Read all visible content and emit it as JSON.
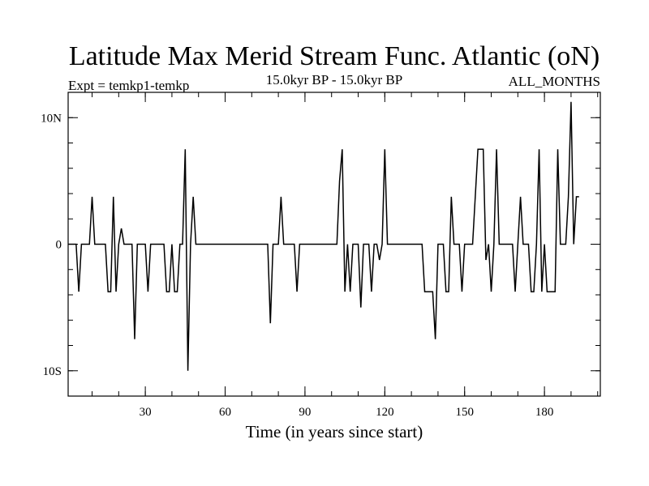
{
  "chart_data": {
    "type": "line",
    "title": "Latitude Max Merid Stream Func. Atlantic (oN)",
    "subtitle_left": "Expt = temkp1-temkp",
    "subtitle_center": "15.0kyr BP - 15.0kyr BP",
    "subtitle_right": "ALL_MONTHS",
    "xlabel": "Time (in years since start)",
    "ylabel": "",
    "xlim": [
      1,
      201
    ],
    "ylim": [
      -12,
      12
    ],
    "x_ticks": [
      {
        "value": 30,
        "label": "30"
      },
      {
        "value": 60,
        "label": "60"
      },
      {
        "value": 90,
        "label": "90"
      },
      {
        "value": 120,
        "label": "120"
      },
      {
        "value": 150,
        "label": "150"
      },
      {
        "value": 180,
        "label": "180"
      }
    ],
    "x_minor_step": 10,
    "y_ticks": [
      {
        "value": 10,
        "label": "10N"
      },
      {
        "value": 0,
        "label": "0"
      },
      {
        "value": -10,
        "label": "10S"
      }
    ],
    "y_minor_step": 2,
    "grid": false,
    "series": [
      {
        "name": "Latitude Max Merid Stream Func. Atlantic",
        "points": [
          [
            1,
            0
          ],
          [
            4,
            0
          ],
          [
            5,
            -3.75
          ],
          [
            6,
            0
          ],
          [
            9,
            0
          ],
          [
            10,
            3.75
          ],
          [
            11,
            0
          ],
          [
            15,
            0
          ],
          [
            16,
            -3.75
          ],
          [
            17,
            -3.75
          ],
          [
            18,
            3.75
          ],
          [
            19,
            -3.75
          ],
          [
            20,
            0
          ],
          [
            21,
            1.25
          ],
          [
            22,
            0
          ],
          [
            25,
            0
          ],
          [
            26,
            -7.5
          ],
          [
            27,
            0
          ],
          [
            30,
            0
          ],
          [
            31,
            -3.75
          ],
          [
            32,
            0
          ],
          [
            37,
            0
          ],
          [
            38,
            -3.75
          ],
          [
            39,
            -3.75
          ],
          [
            40,
            0
          ],
          [
            41,
            -3.75
          ],
          [
            42,
            -3.75
          ],
          [
            43,
            0
          ],
          [
            44,
            0
          ],
          [
            45,
            7.5
          ],
          [
            46,
            -10
          ],
          [
            47,
            0
          ],
          [
            48,
            3.75
          ],
          [
            49,
            0
          ],
          [
            76,
            0
          ],
          [
            77,
            -6.25
          ],
          [
            78,
            0
          ],
          [
            80,
            0
          ],
          [
            81,
            3.75
          ],
          [
            82,
            0
          ],
          [
            86,
            0
          ],
          [
            87,
            -3.75
          ],
          [
            88,
            0
          ],
          [
            102,
            0
          ],
          [
            103,
            5
          ],
          [
            104,
            7.5
          ],
          [
            105,
            -3.75
          ],
          [
            106,
            0
          ],
          [
            107,
            -3.75
          ],
          [
            108,
            0
          ],
          [
            110,
            0
          ],
          [
            111,
            -5
          ],
          [
            112,
            0
          ],
          [
            114,
            0
          ],
          [
            115,
            -3.75
          ],
          [
            116,
            0
          ],
          [
            117,
            0
          ],
          [
            118,
            -1.25
          ],
          [
            119,
            0
          ],
          [
            120,
            7.5
          ],
          [
            121,
            0
          ],
          [
            134,
            0
          ],
          [
            135,
            -3.75
          ],
          [
            137,
            -3.75
          ],
          [
            138,
            -3.75
          ],
          [
            139,
            -7.5
          ],
          [
            140,
            0
          ],
          [
            142,
            0
          ],
          [
            143,
            -3.75
          ],
          [
            144,
            -3.75
          ],
          [
            145,
            3.75
          ],
          [
            146,
            0
          ],
          [
            148,
            0
          ],
          [
            149,
            -3.75
          ],
          [
            150,
            0
          ],
          [
            153,
            0
          ],
          [
            155,
            7.5
          ],
          [
            157,
            7.5
          ],
          [
            158,
            -1.25
          ],
          [
            159,
            0
          ],
          [
            160,
            -3.75
          ],
          [
            161,
            0
          ],
          [
            162,
            7.5
          ],
          [
            163,
            0
          ],
          [
            168,
            0
          ],
          [
            169,
            -3.75
          ],
          [
            170,
            0
          ],
          [
            171,
            3.75
          ],
          [
            172,
            0
          ],
          [
            174,
            0
          ],
          [
            175,
            -3.75
          ],
          [
            176,
            -3.75
          ],
          [
            177,
            0
          ],
          [
            178,
            7.5
          ],
          [
            179,
            -3.75
          ],
          [
            180,
            0
          ],
          [
            181,
            -3.75
          ],
          [
            184,
            -3.75
          ],
          [
            185,
            7.5
          ],
          [
            186,
            0
          ],
          [
            188,
            0
          ],
          [
            189,
            3.75
          ],
          [
            190,
            11.25
          ],
          [
            191,
            0
          ],
          [
            192,
            3.75
          ],
          [
            193,
            3.75
          ]
        ]
      }
    ]
  }
}
